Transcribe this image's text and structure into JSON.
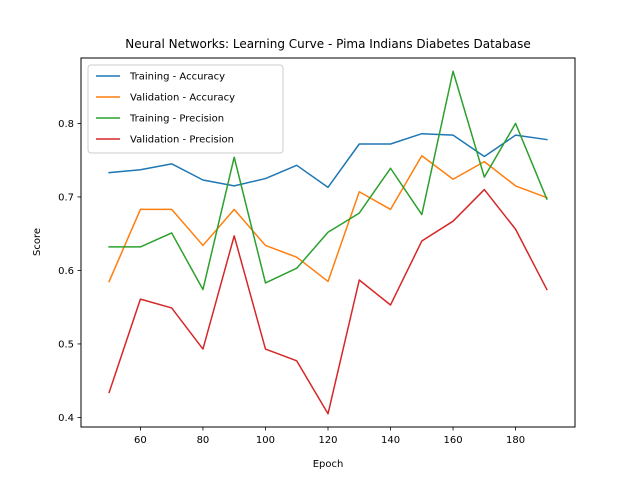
{
  "chart_data": {
    "type": "line",
    "title": "Neural Networks: Learning Curve - Pima Indians Diabetes Database",
    "xlabel": "Epoch",
    "ylabel": "Score",
    "x": [
      50,
      60,
      70,
      80,
      90,
      100,
      110,
      120,
      130,
      140,
      150,
      160,
      170,
      180,
      190
    ],
    "xlim": [
      41,
      199
    ],
    "ylim": [
      0.387,
      0.889
    ],
    "xticks": [
      60,
      80,
      100,
      120,
      140,
      160,
      180
    ],
    "yticks": [
      0.4,
      0.5,
      0.6,
      0.7,
      0.8
    ],
    "ytick_labels": [
      "0.4",
      "0.5",
      "0.6",
      "0.7",
      "0.8"
    ],
    "grid": false,
    "legend_position": "top-left",
    "series": [
      {
        "name": "Training - Accuracy",
        "color": "#1f77b4",
        "values": [
          0.733,
          0.737,
          0.745,
          0.723,
          0.715,
          0.725,
          0.743,
          0.713,
          0.772,
          0.772,
          0.786,
          0.784,
          0.755,
          0.784,
          0.778
        ]
      },
      {
        "name": "Validation - Accuracy",
        "color": "#ff7f0e",
        "values": [
          0.585,
          0.683,
          0.683,
          0.634,
          0.683,
          0.634,
          0.618,
          0.585,
          0.707,
          0.683,
          0.756,
          0.724,
          0.748,
          0.715,
          0.699
        ]
      },
      {
        "name": "Training - Precision",
        "color": "#2ca02c",
        "values": [
          0.632,
          0.632,
          0.651,
          0.574,
          0.754,
          0.583,
          0.603,
          0.652,
          0.678,
          0.739,
          0.676,
          0.871,
          0.727,
          0.8,
          0.697
        ]
      },
      {
        "name": "Validation - Precision",
        "color": "#d62728",
        "values": [
          0.434,
          0.561,
          0.549,
          0.493,
          0.647,
          0.493,
          0.477,
          0.405,
          0.587,
          0.553,
          0.64,
          0.667,
          0.71,
          0.656,
          0.574
        ]
      }
    ]
  }
}
